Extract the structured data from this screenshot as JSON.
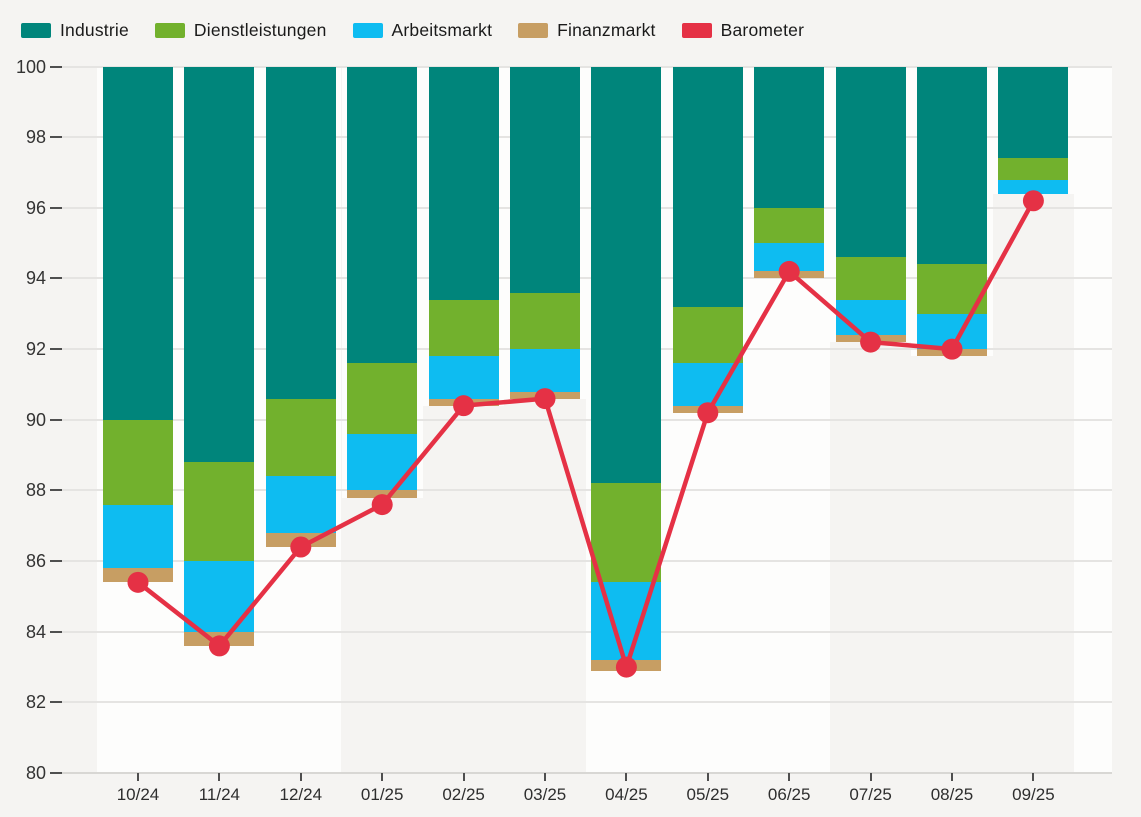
{
  "legend": {
    "items": [
      {
        "label": "Industrie",
        "color": "#00857b"
      },
      {
        "label": "Dienstleistungen",
        "color": "#72b12d"
      },
      {
        "label": "Arbeitsmarkt",
        "color": "#0ebcf1"
      },
      {
        "label": "Finanzmarkt",
        "color": "#c79e63"
      },
      {
        "label": "Barometer",
        "color": "#e53145"
      }
    ]
  },
  "chart_data": {
    "type": "bar",
    "variant": "stacked columns hanging down from 100 with line-and-dot overlay",
    "title": "",
    "categories": [
      "10/24",
      "11/24",
      "12/24",
      "01/25",
      "02/25",
      "03/25",
      "04/25",
      "05/25",
      "06/25",
      "07/25",
      "08/25",
      "09/25"
    ],
    "stack_anchor_top": 100,
    "series": [
      {
        "name": "Industrie",
        "color": "#00857b",
        "lower_bounds": [
          90.0,
          88.8,
          90.6,
          91.6,
          93.4,
          93.6,
          88.2,
          93.2,
          96.0,
          94.6,
          94.4,
          97.4
        ]
      },
      {
        "name": "Dienstleistungen",
        "color": "#72b12d",
        "lower_bounds": [
          87.6,
          86.0,
          88.4,
          89.6,
          91.8,
          92.0,
          85.4,
          91.6,
          95.0,
          93.4,
          93.0,
          96.8
        ]
      },
      {
        "name": "Arbeitsmarkt",
        "color": "#0ebcf1",
        "lower_bounds": [
          85.8,
          84.0,
          86.8,
          88.0,
          90.6,
          90.8,
          83.2,
          90.4,
          94.2,
          92.4,
          92.0,
          96.4
        ]
      },
      {
        "name": "Finanzmarkt",
        "color": "#c79e63",
        "lower_bounds": [
          85.4,
          83.6,
          86.4,
          87.8,
          90.4,
          90.6,
          82.9,
          90.2,
          94.0,
          92.2,
          91.8,
          96.4
        ]
      }
    ],
    "line_series": {
      "name": "Barometer",
      "color": "#e53145",
      "values": [
        85.4,
        83.6,
        86.4,
        87.6,
        90.4,
        90.6,
        83.0,
        90.2,
        94.2,
        92.2,
        92.0,
        96.2
      ]
    },
    "ylim": [
      80,
      100
    ],
    "y_ticks": [
      "100",
      "98",
      "96",
      "94",
      "92",
      "90",
      "88",
      "86",
      "84",
      "82",
      "80"
    ],
    "xlabel": "",
    "ylabel": "",
    "grid": "horizontal",
    "legend_position": "top-left",
    "background_bands": {
      "white_quarters": [
        [
          "10/24",
          "12/24"
        ],
        [
          "04/25",
          "06/25"
        ]
      ],
      "note": "alternating quarter shading; each bar also has a white backing column down to its stack bottom"
    }
  },
  "colors": {
    "page_background": "#f5f4f2",
    "white_band": "#fdfdfc",
    "gridline": "#e5e4e2",
    "axis_line": "#d8d7d4",
    "tick": "#4f4f4f"
  }
}
